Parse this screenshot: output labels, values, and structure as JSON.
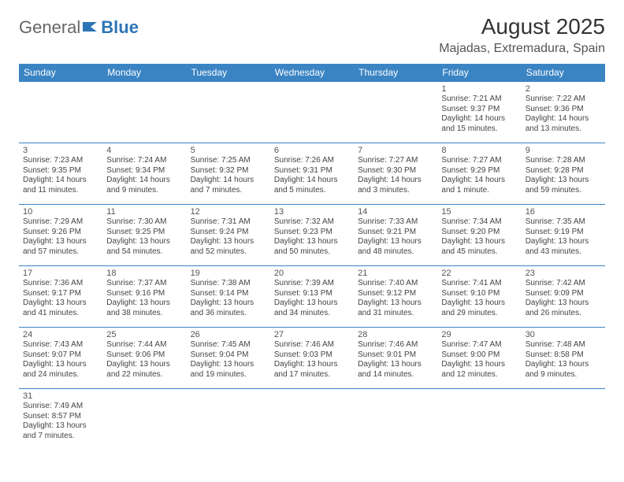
{
  "brand": {
    "part1": "General",
    "part2": "Blue"
  },
  "title": "August 2025",
  "location": "Majadas, Extremadura, Spain",
  "colors": {
    "header_bg": "#3b84c4",
    "header_text": "#ffffff",
    "border": "#3b84c4",
    "brand_blue": "#2e75b6",
    "text": "#444444"
  },
  "weekdays": [
    "Sunday",
    "Monday",
    "Tuesday",
    "Wednesday",
    "Thursday",
    "Friday",
    "Saturday"
  ],
  "weeks": [
    [
      null,
      null,
      null,
      null,
      null,
      {
        "n": "1",
        "sr": "7:21 AM",
        "ss": "9:37 PM",
        "dl": "14 hours and 15 minutes."
      },
      {
        "n": "2",
        "sr": "7:22 AM",
        "ss": "9:36 PM",
        "dl": "14 hours and 13 minutes."
      }
    ],
    [
      {
        "n": "3",
        "sr": "7:23 AM",
        "ss": "9:35 PM",
        "dl": "14 hours and 11 minutes."
      },
      {
        "n": "4",
        "sr": "7:24 AM",
        "ss": "9:34 PM",
        "dl": "14 hours and 9 minutes."
      },
      {
        "n": "5",
        "sr": "7:25 AM",
        "ss": "9:32 PM",
        "dl": "14 hours and 7 minutes."
      },
      {
        "n": "6",
        "sr": "7:26 AM",
        "ss": "9:31 PM",
        "dl": "14 hours and 5 minutes."
      },
      {
        "n": "7",
        "sr": "7:27 AM",
        "ss": "9:30 PM",
        "dl": "14 hours and 3 minutes."
      },
      {
        "n": "8",
        "sr": "7:27 AM",
        "ss": "9:29 PM",
        "dl": "14 hours and 1 minute."
      },
      {
        "n": "9",
        "sr": "7:28 AM",
        "ss": "9:28 PM",
        "dl": "13 hours and 59 minutes."
      }
    ],
    [
      {
        "n": "10",
        "sr": "7:29 AM",
        "ss": "9:26 PM",
        "dl": "13 hours and 57 minutes."
      },
      {
        "n": "11",
        "sr": "7:30 AM",
        "ss": "9:25 PM",
        "dl": "13 hours and 54 minutes."
      },
      {
        "n": "12",
        "sr": "7:31 AM",
        "ss": "9:24 PM",
        "dl": "13 hours and 52 minutes."
      },
      {
        "n": "13",
        "sr": "7:32 AM",
        "ss": "9:23 PM",
        "dl": "13 hours and 50 minutes."
      },
      {
        "n": "14",
        "sr": "7:33 AM",
        "ss": "9:21 PM",
        "dl": "13 hours and 48 minutes."
      },
      {
        "n": "15",
        "sr": "7:34 AM",
        "ss": "9:20 PM",
        "dl": "13 hours and 45 minutes."
      },
      {
        "n": "16",
        "sr": "7:35 AM",
        "ss": "9:19 PM",
        "dl": "13 hours and 43 minutes."
      }
    ],
    [
      {
        "n": "17",
        "sr": "7:36 AM",
        "ss": "9:17 PM",
        "dl": "13 hours and 41 minutes."
      },
      {
        "n": "18",
        "sr": "7:37 AM",
        "ss": "9:16 PM",
        "dl": "13 hours and 38 minutes."
      },
      {
        "n": "19",
        "sr": "7:38 AM",
        "ss": "9:14 PM",
        "dl": "13 hours and 36 minutes."
      },
      {
        "n": "20",
        "sr": "7:39 AM",
        "ss": "9:13 PM",
        "dl": "13 hours and 34 minutes."
      },
      {
        "n": "21",
        "sr": "7:40 AM",
        "ss": "9:12 PM",
        "dl": "13 hours and 31 minutes."
      },
      {
        "n": "22",
        "sr": "7:41 AM",
        "ss": "9:10 PM",
        "dl": "13 hours and 29 minutes."
      },
      {
        "n": "23",
        "sr": "7:42 AM",
        "ss": "9:09 PM",
        "dl": "13 hours and 26 minutes."
      }
    ],
    [
      {
        "n": "24",
        "sr": "7:43 AM",
        "ss": "9:07 PM",
        "dl": "13 hours and 24 minutes."
      },
      {
        "n": "25",
        "sr": "7:44 AM",
        "ss": "9:06 PM",
        "dl": "13 hours and 22 minutes."
      },
      {
        "n": "26",
        "sr": "7:45 AM",
        "ss": "9:04 PM",
        "dl": "13 hours and 19 minutes."
      },
      {
        "n": "27",
        "sr": "7:46 AM",
        "ss": "9:03 PM",
        "dl": "13 hours and 17 minutes."
      },
      {
        "n": "28",
        "sr": "7:46 AM",
        "ss": "9:01 PM",
        "dl": "13 hours and 14 minutes."
      },
      {
        "n": "29",
        "sr": "7:47 AM",
        "ss": "9:00 PM",
        "dl": "13 hours and 12 minutes."
      },
      {
        "n": "30",
        "sr": "7:48 AM",
        "ss": "8:58 PM",
        "dl": "13 hours and 9 minutes."
      }
    ],
    [
      {
        "n": "31",
        "sr": "7:49 AM",
        "ss": "8:57 PM",
        "dl": "13 hours and 7 minutes."
      },
      null,
      null,
      null,
      null,
      null,
      null
    ]
  ],
  "labels": {
    "sunrise": "Sunrise:",
    "sunset": "Sunset:",
    "daylight": "Daylight:"
  }
}
